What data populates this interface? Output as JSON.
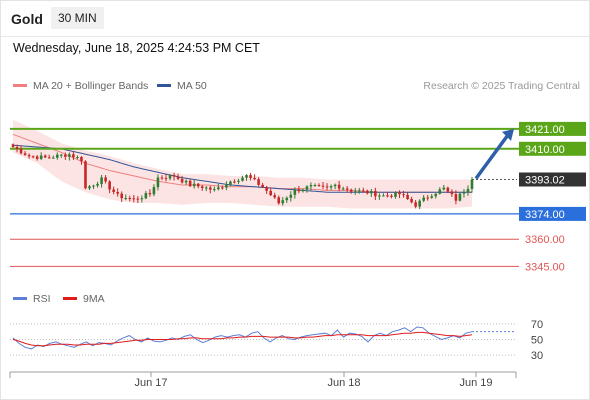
{
  "header": {
    "symbol": "Gold",
    "timeframe": "30 MIN",
    "datetime": "Wednesday, June 18, 2025 4:24:53 PM CET"
  },
  "legend": {
    "ma20_label": "MA 20 + Bollinger Bands",
    "ma50_label": "MA 50",
    "credit": "Research © 2025 Trading Central",
    "rsi_label": "RSI",
    "rsi_ma_label": "9MA"
  },
  "colors": {
    "ma20": "#f08080",
    "ma50": "#2f5597",
    "band_fill": "#fde4e4",
    "resistance": "#5aa618",
    "pivot": "#2a6fdb",
    "support": "#e05555",
    "candle_up": "#2e7d32",
    "candle_down": "#c62828",
    "price_tag": "#333333",
    "rsi": "#5b7fd6",
    "rsi_ma": "#e01b1b"
  },
  "chart_data": [
    {
      "type": "candlestick",
      "title": "",
      "x_ticks": [
        "Jun 17",
        "Jun 18",
        "Jun 19"
      ],
      "ylim": [
        3338,
        3432
      ],
      "candle_count": 115,
      "price_path": {
        "bar_index": [
          0,
          4,
          8,
          14,
          17,
          18,
          22,
          26,
          30,
          34,
          36,
          40,
          44,
          47,
          50,
          54,
          58,
          62,
          66,
          70,
          74,
          78,
          80,
          84,
          88,
          92,
          96,
          100,
          104,
          107,
          110,
          113,
          114
        ],
        "close": [
          3411,
          3406,
          3405,
          3407,
          3404,
          3388,
          3393,
          3384,
          3382,
          3385,
          3394,
          3395,
          3390,
          3389,
          3387,
          3392,
          3395,
          3389,
          3380,
          3387,
          3389,
          3388,
          3390,
          3387,
          3386,
          3384,
          3385,
          3379,
          3385,
          3388,
          3382,
          3389,
          3393
        ]
      },
      "ma20": [
        3418,
        3413,
        3408,
        3402,
        3398,
        3395,
        3392,
        3390,
        3390,
        3389,
        3389,
        3388,
        3388,
        3387,
        3387,
        3386,
        3386,
        3386,
        3386,
        3386
      ],
      "bollinger_upper": [
        3426,
        3420,
        3413,
        3409,
        3406,
        3402,
        3399,
        3396,
        3396,
        3395,
        3395,
        3394,
        3394,
        3393,
        3393,
        3393,
        3393,
        3393,
        3393,
        3393
      ],
      "bollinger_lower": [
        3408,
        3402,
        3392,
        3386,
        3382,
        3380,
        3380,
        3379,
        3380,
        3380,
        3379,
        3378,
        3378,
        3378,
        3377,
        3377,
        3377,
        3377,
        3377,
        3378
      ],
      "ma50": [
        3412,
        3411,
        3410,
        3407,
        3404,
        3400,
        3397,
        3394,
        3392,
        3390,
        3389,
        3388,
        3387,
        3386,
        3386,
        3386,
        3386,
        3386,
        3386,
        3386
      ],
      "levels": [
        {
          "value": 3421.0,
          "label": "3421.00",
          "kind": "resistance"
        },
        {
          "value": 3410.0,
          "label": "3410.00",
          "kind": "resistance"
        },
        {
          "value": 3393.02,
          "label": "3393.02",
          "kind": "last"
        },
        {
          "value": 3374.0,
          "label": "3374.00",
          "kind": "pivot"
        },
        {
          "value": 3360.0,
          "label": "3360.00",
          "kind": "support"
        },
        {
          "value": 3345.0,
          "label": "3345.00",
          "kind": "support"
        }
      ],
      "forecast_arrow": {
        "from": 3393.02,
        "to": 3421.0,
        "direction": "up"
      }
    },
    {
      "type": "line",
      "title": "",
      "y_ticks": [
        70,
        50,
        30
      ],
      "ylim": [
        20,
        80
      ],
      "series": [
        {
          "name": "RSI",
          "values": [
            52,
            45,
            40,
            38,
            43,
            41,
            45,
            47,
            44,
            42,
            40,
            44,
            47,
            42,
            46,
            45,
            43,
            48,
            52,
            55,
            50,
            47,
            52,
            48,
            47,
            49,
            52,
            50,
            54,
            56,
            50,
            46,
            49,
            53,
            55,
            53,
            55,
            56,
            53,
            58,
            60,
            52,
            47,
            52,
            55,
            51,
            50,
            53,
            55,
            56,
            57,
            58,
            55,
            62,
            53,
            58,
            57,
            54,
            47,
            55,
            58,
            55,
            60,
            62,
            65,
            60,
            66,
            65,
            58,
            54,
            50,
            52,
            55,
            52,
            58,
            60
          ]
        },
        {
          "name": "9MA",
          "values": [
            50,
            48,
            45,
            43,
            42,
            42,
            43,
            44,
            44,
            44,
            43,
            43,
            44,
            44,
            44,
            45,
            45,
            46,
            47,
            48,
            49,
            49,
            50,
            50,
            50,
            50,
            50,
            51,
            51,
            52,
            52,
            51,
            51,
            51,
            51,
            52,
            52,
            53,
            53,
            54,
            54,
            54,
            53,
            53,
            53,
            53,
            52,
            52,
            53,
            53,
            54,
            55,
            55,
            56,
            56,
            56,
            56,
            56,
            55,
            55,
            55,
            55,
            56,
            57,
            58,
            58,
            59,
            59,
            58,
            57,
            56,
            55,
            55,
            54,
            55,
            56
          ]
        }
      ]
    }
  ]
}
